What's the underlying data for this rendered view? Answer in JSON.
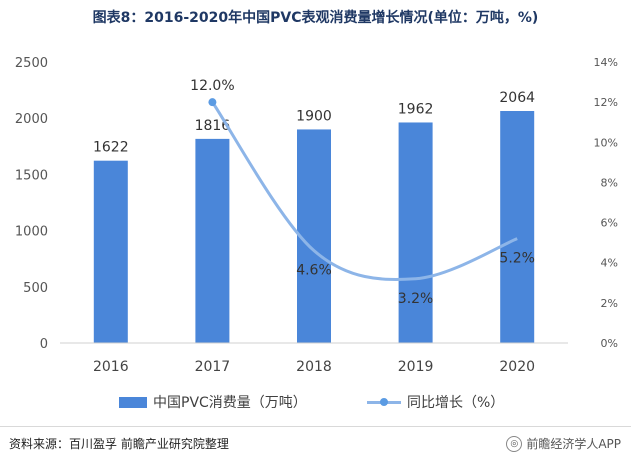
{
  "title": "图表8：2016-2020年中国PVC表观消费量增长情况(单位：万吨，%)",
  "chart_data": {
    "type": "bar",
    "categories": [
      "2016",
      "2017",
      "2018",
      "2019",
      "2020"
    ],
    "series": [
      {
        "name": "中国PVC消费量（万吨）",
        "type": "bar",
        "axis": "left",
        "values": [
          1622,
          1816,
          1900,
          1962,
          2064
        ],
        "labels": [
          "1622",
          "1816",
          "1900",
          "1962",
          "2064"
        ]
      },
      {
        "name": "同比增长（%）",
        "type": "line",
        "axis": "right",
        "values": [
          null,
          12.0,
          4.6,
          3.2,
          5.2
        ],
        "labels": [
          "",
          "12.0%",
          "4.6%",
          "3.2%",
          "5.2%"
        ]
      }
    ],
    "left_axis": {
      "ylim": [
        0,
        2500
      ],
      "ticks": [
        "0",
        "500",
        "1000",
        "1500",
        "2000",
        "2500"
      ]
    },
    "right_axis": {
      "ylim": [
        0,
        14
      ],
      "ticks": [
        "0%",
        "2%",
        "4%",
        "6%",
        "8%",
        "10%",
        "12%",
        "14%"
      ]
    },
    "grid": false,
    "legend_position": "bottom"
  },
  "colors": {
    "bar": "#4a86d9",
    "line": "#8db5e8",
    "marker": "#5b9be3",
    "title": "#1f3864"
  },
  "footer": {
    "source": "资料来源：百川盈孚 前瞻产业研究院整理",
    "watermark": "前瞻经济学人APP",
    "watermark_icon": "brand-logo-icon"
  }
}
